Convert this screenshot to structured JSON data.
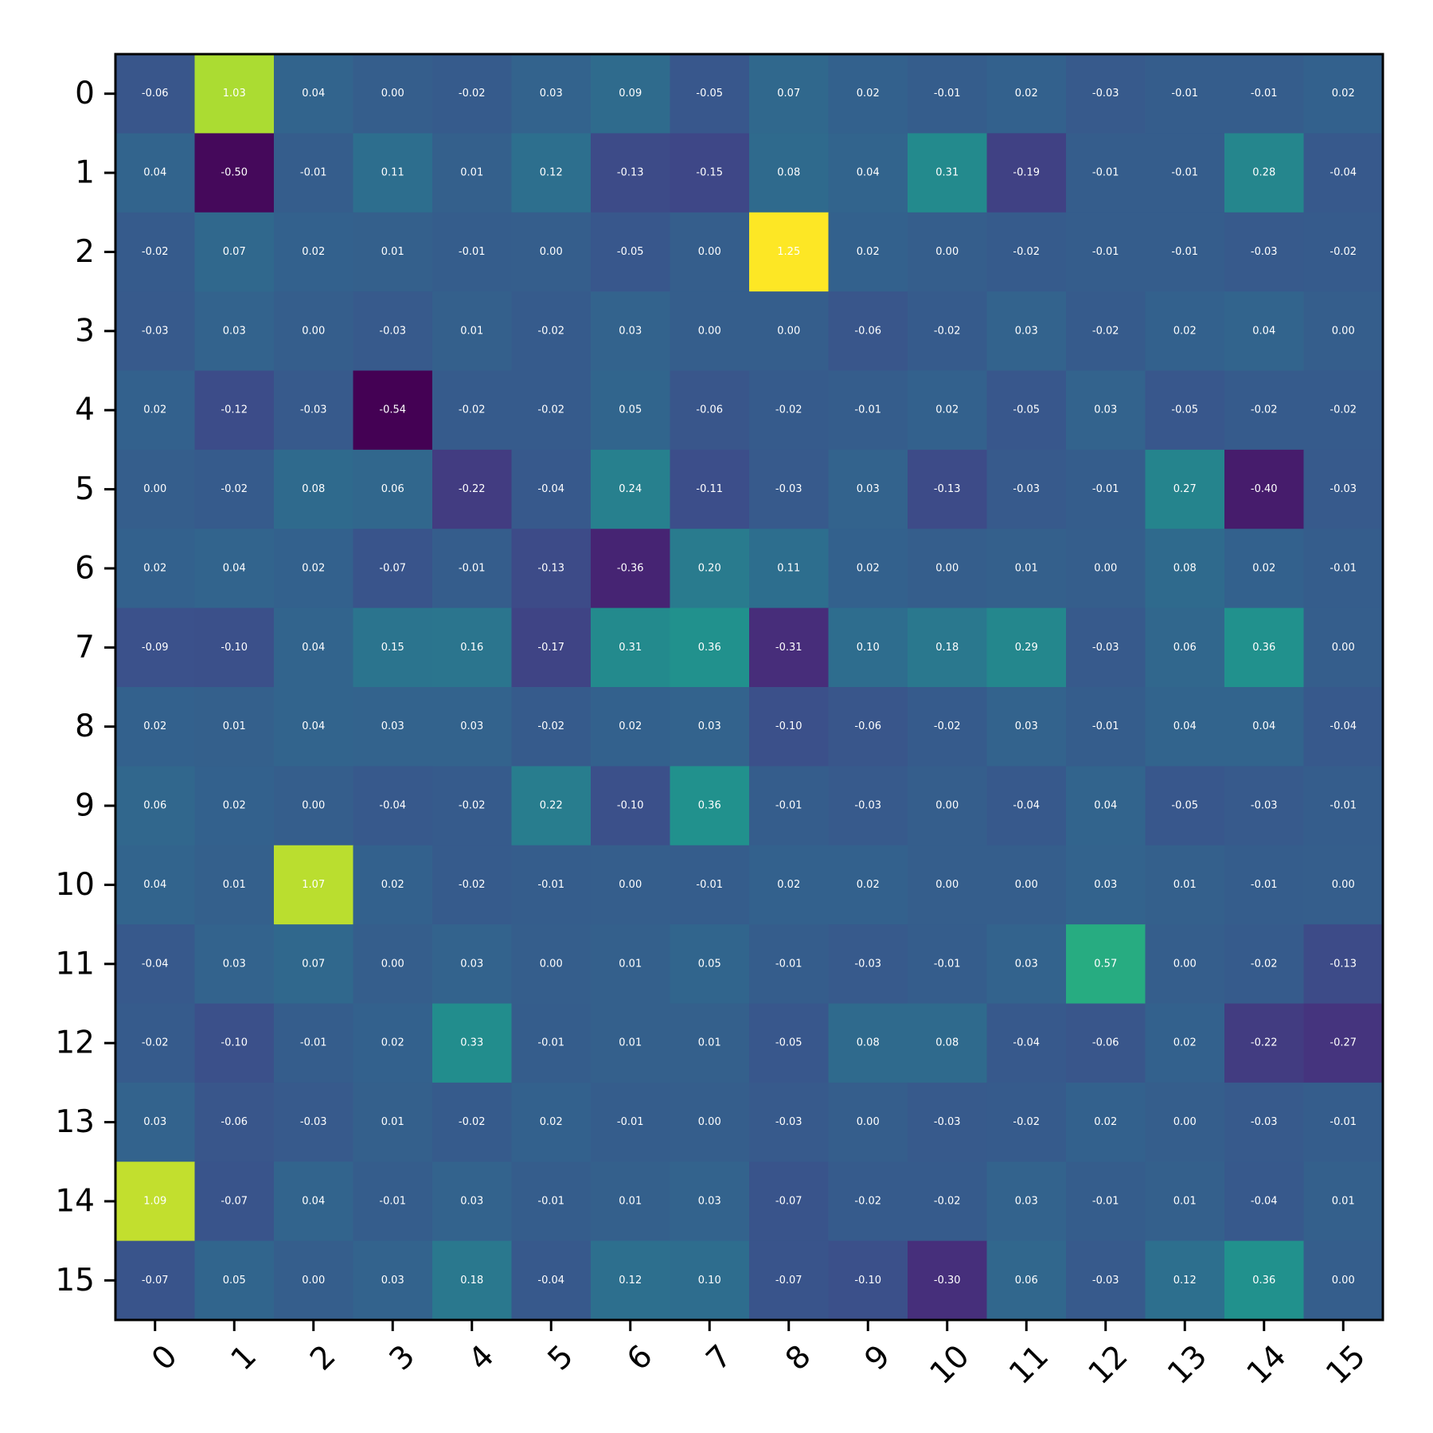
{
  "chart_data": {
    "type": "heatmap",
    "title": "",
    "xlabel": "",
    "ylabel": "",
    "x_tick_labels": [
      "0",
      "1",
      "2",
      "3",
      "4",
      "5",
      "6",
      "7",
      "8",
      "9",
      "10",
      "11",
      "12",
      "13",
      "14",
      "15"
    ],
    "y_tick_labels": [
      "0",
      "1",
      "2",
      "3",
      "4",
      "5",
      "6",
      "7",
      "8",
      "9",
      "10",
      "11",
      "12",
      "13",
      "14",
      "15"
    ],
    "colormap": "viridis",
    "color_range": [
      -0.54,
      1.25
    ],
    "x_tick_rotation_deg": 45,
    "grid": false,
    "values": [
      [
        -0.06,
        1.03,
        0.04,
        -0.0,
        -0.02,
        0.03,
        0.09,
        -0.05,
        0.07,
        0.02,
        -0.01,
        0.02,
        -0.03,
        -0.01,
        -0.01,
        0.02
      ],
      [
        0.04,
        -0.5,
        -0.01,
        0.11,
        0.01,
        0.12,
        -0.13,
        -0.15,
        0.08,
        0.04,
        0.31,
        -0.19,
        -0.01,
        -0.01,
        0.28,
        -0.04
      ],
      [
        -0.02,
        0.07,
        0.02,
        0.01,
        -0.01,
        -0.0,
        -0.05,
        -0.0,
        1.25,
        0.02,
        0.0,
        -0.02,
        -0.01,
        -0.01,
        -0.03,
        -0.02
      ],
      [
        -0.03,
        0.03,
        0.0,
        -0.03,
        0.01,
        -0.02,
        0.03,
        -0.0,
        0.0,
        -0.06,
        -0.02,
        0.03,
        -0.02,
        0.02,
        0.04,
        0.0
      ],
      [
        0.02,
        -0.12,
        -0.03,
        -0.54,
        -0.02,
        -0.02,
        0.05,
        -0.06,
        -0.02,
        -0.01,
        0.02,
        -0.05,
        0.03,
        -0.05,
        -0.02,
        -0.02
      ],
      [
        -0.0,
        -0.02,
        0.08,
        0.06,
        -0.22,
        -0.04,
        0.24,
        -0.11,
        -0.03,
        0.03,
        -0.13,
        -0.03,
        -0.01,
        0.27,
        -0.4,
        -0.03
      ],
      [
        0.02,
        0.04,
        0.02,
        -0.07,
        -0.01,
        -0.13,
        -0.36,
        0.2,
        0.11,
        0.02,
        -0.0,
        0.01,
        0.0,
        0.08,
        0.02,
        -0.01
      ],
      [
        -0.09,
        -0.1,
        0.04,
        0.15,
        0.16,
        -0.17,
        0.31,
        0.36,
        -0.31,
        0.1,
        0.18,
        0.29,
        -0.03,
        0.06,
        0.36,
        0.0
      ],
      [
        0.02,
        0.01,
        0.04,
        0.03,
        0.03,
        -0.02,
        0.02,
        0.03,
        -0.1,
        -0.06,
        -0.02,
        0.03,
        -0.01,
        0.04,
        0.04,
        -0.04
      ],
      [
        0.06,
        0.02,
        0.0,
        -0.04,
        -0.02,
        0.22,
        -0.1,
        0.36,
        -0.01,
        -0.03,
        -0.0,
        -0.04,
        0.04,
        -0.05,
        -0.03,
        -0.01
      ],
      [
        0.04,
        0.01,
        1.07,
        0.02,
        -0.02,
        -0.01,
        0.0,
        -0.01,
        0.02,
        0.02,
        -0.0,
        -0.0,
        0.03,
        0.01,
        -0.01,
        0.0
      ],
      [
        -0.04,
        0.03,
        0.07,
        0.0,
        0.03,
        -0.0,
        0.01,
        0.05,
        -0.01,
        -0.03,
        -0.01,
        0.03,
        0.57,
        0.0,
        -0.02,
        -0.13
      ],
      [
        -0.02,
        -0.1,
        -0.01,
        0.02,
        0.33,
        -0.01,
        0.01,
        0.01,
        -0.05,
        0.08,
        0.08,
        -0.04,
        -0.06,
        0.02,
        -0.22,
        -0.27
      ],
      [
        0.03,
        -0.06,
        -0.03,
        0.01,
        -0.02,
        0.02,
        -0.01,
        0.0,
        -0.03,
        0.0,
        -0.03,
        -0.02,
        0.02,
        -0.0,
        -0.03,
        -0.01
      ],
      [
        1.09,
        -0.07,
        0.04,
        -0.01,
        0.03,
        -0.01,
        0.01,
        0.03,
        -0.07,
        -0.02,
        -0.02,
        0.03,
        -0.01,
        0.01,
        -0.04,
        0.01
      ],
      [
        -0.07,
        0.05,
        -0.0,
        0.03,
        0.18,
        -0.04,
        0.12,
        0.1,
        -0.07,
        -0.1,
        -0.3,
        0.06,
        -0.03,
        0.12,
        0.36,
        0.0
      ]
    ]
  }
}
